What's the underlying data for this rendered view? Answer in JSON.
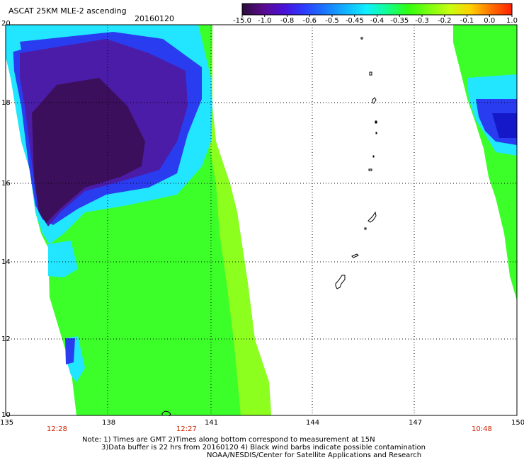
{
  "header": {
    "title": "ASCAT 25KM MLE-2 ascending",
    "date": "20160120"
  },
  "colorbar": {
    "labels": [
      "-15.0",
      "-1.0",
      "-0.8",
      "-0.6",
      "-0.5",
      "-0.45",
      "-0.4",
      "-0.35",
      "-0.3",
      "-0.2",
      "-0.1",
      "0.0",
      "1.0"
    ],
    "colors": [
      "#2a0d3a",
      "#5a0c8c",
      "#4a10d8",
      "#2c3cff",
      "#1a78ff",
      "#10b4ff",
      "#10f0ff",
      "#10ff90",
      "#30ff10",
      "#7cff10",
      "#c8ff10",
      "#ffd000",
      "#ff7000",
      "#ff2000"
    ]
  },
  "map": {
    "lat_labels": [
      "20",
      "18",
      "16",
      "14",
      "12",
      "10"
    ],
    "lon_labels": [
      "135",
      "138",
      "141",
      "144",
      "147",
      "150"
    ],
    "time_labels": [
      "12:28",
      "12:27",
      "10:48"
    ],
    "colors": {
      "purple_dark": "#3c0f5c",
      "purple": "#4b1ca8",
      "blue": "#2a3cf0",
      "cyan": "#22e6ff",
      "green": "#3cff2a",
      "lime": "#8cff1e"
    }
  },
  "notes": {
    "line1": "Note: 1) Times are GMT 2)Times along bottom correspond to measurement at 15N",
    "line2": "3)Data buffer is 22 hrs from 20160120 4) Black wind barbs indicate possible contamination",
    "line3": "NOAA/NESDIS/Center for Satellite Applications and Research"
  }
}
